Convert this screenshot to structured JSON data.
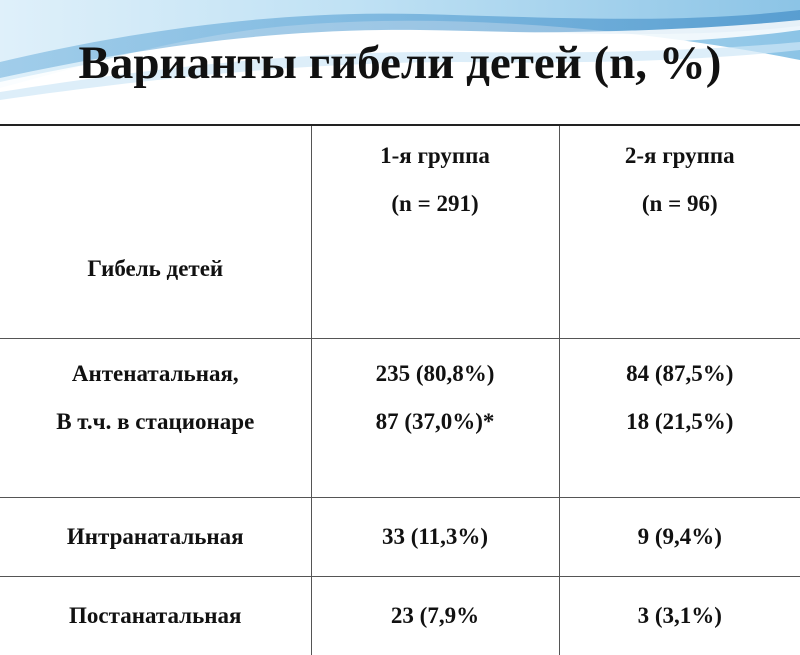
{
  "title": "Варианты гибели детей (n, %)",
  "table": {
    "header": {
      "row_label": "Гибель детей",
      "group1": [
        "1-я группа",
        "(n = 291)"
      ],
      "group2": [
        "2-я группа",
        "(n = 96)"
      ]
    },
    "rows": [
      {
        "label": [
          "Антенатальная,",
          "В т.ч. в стационаре"
        ],
        "group1": [
          "235 (80,8%)",
          "87 (37,0%)*"
        ],
        "group2": [
          "84 (87,5%)",
          "18 (21,5%)"
        ]
      },
      {
        "label": [
          "Интранатальная"
        ],
        "group1": [
          "33 (11,3%)"
        ],
        "group2": [
          "9 (9,4%)"
        ]
      },
      {
        "label": [
          "Постанатальная"
        ],
        "group1": [
          "23 (7,9%"
        ],
        "group2": [
          "3 (3,1%)"
        ]
      }
    ]
  },
  "colors": {
    "banner_light": "#e9f4fb",
    "banner_mid": "#a8d4ee",
    "banner_dark": "#4f9cd0",
    "border": "#555555",
    "text": "#111111"
  }
}
